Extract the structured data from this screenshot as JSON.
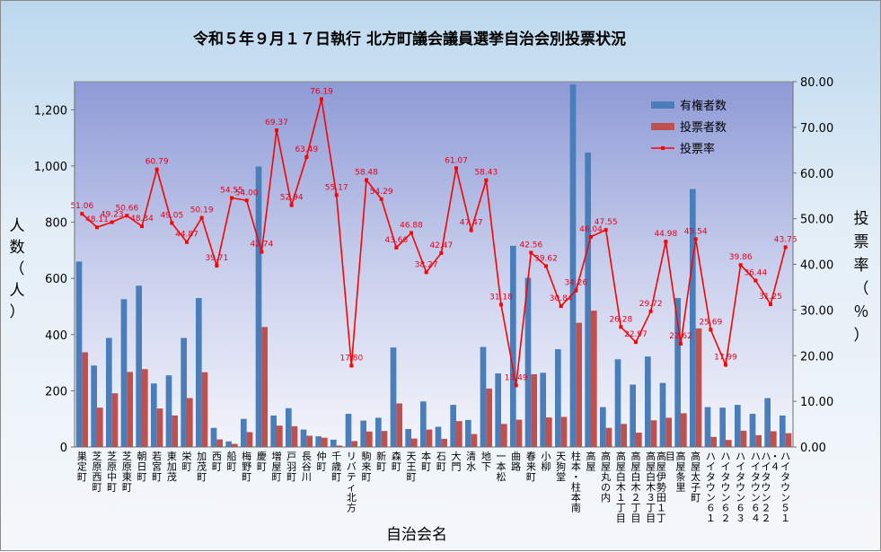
{
  "chart_data": {
    "type": "bar",
    "title": "令和５年９月１７日執行 北方町議会議員選挙自治会別投票状況",
    "xlabel": "自治会名",
    "ylabel_left": "人数（人）",
    "ylabel_right": "投票率（％）",
    "ylim_left": [
      0,
      1300
    ],
    "ylim_right": [
      0,
      80
    ],
    "yticks_left": [
      "0",
      "200",
      "400",
      "600",
      "800",
      "1,000",
      "1,200"
    ],
    "yticks_right": [
      "0.00",
      "10.00",
      "20.00",
      "30.00",
      "40.00",
      "50.00",
      "60.00",
      "70.00",
      "80.00"
    ],
    "legend_position": "top-right",
    "categories": [
      "巣定町",
      "芝原西町",
      "芝原中町",
      "芝原東町",
      "朝日町",
      "若宮町",
      "東加茂",
      "栄町",
      "加茂町",
      "西町",
      "船町",
      "梅野町",
      "慶町",
      "増屋町",
      "戸羽町",
      "長谷川",
      "仲町",
      "千歳町",
      "リバティ北方",
      "駒来町",
      "新町",
      "森町",
      "天王町",
      "本町",
      "石町",
      "大門",
      "清水",
      "地下",
      "一本松",
      "曲路",
      "春来町",
      "小柳",
      "天狗堂",
      "柱本・柱本南",
      "高屋",
      "高屋丸の内",
      "高屋白木１丁目",
      "高屋白木２丁目",
      "高屋白木３丁目",
      "高屋伊勢田１丁目",
      "高屋条里",
      "高屋太子町",
      "ハイタウン６１",
      "ハイタウン６２",
      "ハイタウン６３",
      "ハイタウン６４",
      "ハイタウン２２・４",
      "ハイタウン５１"
    ],
    "cat_labels": [
      "巣定町",
      "芝原西町",
      "芝原中町",
      "芝原東町",
      "朝日町",
      "若宮町",
      "東加茂",
      "栄町",
      "加茂町",
      "西町",
      "船町",
      "梅野町",
      "慶町",
      "増屋町",
      "戸羽町",
      "長谷川",
      "仲町",
      "千歳町",
      "リバティ北方",
      "駒来町",
      "新町",
      "森町",
      "天王町",
      "本町",
      "石町",
      "大門",
      "清水",
      "地下",
      "一本松",
      "曲路",
      "春来町",
      "小柳",
      "天狗堂",
      "柱本・柱本南",
      "高屋",
      "高屋丸の内",
      "高屋白木１丁目",
      "高屋白木２丁目",
      "高屋白木３丁目",
      "高屋伊勢田１丁目",
      "高屋条里",
      "高屋太子町",
      "ハイタウン６１",
      "ハイタウン６２",
      "ハイタウン６３",
      "ハイタウン６４",
      "ハイタウン２２・４",
      "ハイタウン５１"
    ],
    "series": [
      {
        "name": "有権者数",
        "type": "bar",
        "axis": "left",
        "color": "#4a7ebb",
        "values": [
          660,
          290,
          388,
          526,
          574,
          226,
          255,
          388,
          530,
          68,
          20,
          100,
          998,
          112,
          138,
          62,
          38,
          26,
          118,
          94,
          104,
          354,
          64,
          162,
          72,
          150,
          96,
          356,
          262,
          716,
          602,
          264,
          348,
          1290,
          1048,
          142,
          312,
          222,
          322,
          228,
          530,
          918,
          142,
          140,
          150,
          118,
          174,
          112
        ]
      },
      {
        "name": "投票者数",
        "type": "bar",
        "axis": "left",
        "color": "#c0504d",
        "values": [
          337,
          140,
          191,
          267,
          277,
          137,
          112,
          174,
          266,
          27,
          11,
          53,
          427,
          76,
          74,
          40,
          33,
          5,
          21,
          55,
          57,
          155,
          30,
          62,
          29,
          92,
          46,
          208,
          82,
          97,
          259,
          105,
          107,
          442,
          485,
          68,
          82,
          51,
          95,
          104,
          120,
          422,
          36,
          25,
          58,
          42,
          56,
          49
        ]
      },
      {
        "name": "投票率",
        "type": "line",
        "axis": "right",
        "color": "#ff0000",
        "values": [
          51.06,
          48.11,
          49.23,
          50.66,
          48.34,
          60.79,
          49.05,
          44.87,
          50.19,
          39.71,
          54.55,
          54.0,
          42.74,
          69.37,
          52.94,
          63.49,
          76.19,
          55.17,
          17.8,
          58.48,
          54.29,
          43.66,
          46.88,
          38.27,
          42.47,
          61.07,
          47.47,
          58.43,
          31.18,
          13.49,
          42.56,
          39.62,
          30.84,
          34.26,
          46.04,
          47.55,
          26.28,
          22.97,
          29.72,
          44.98,
          22.62,
          45.54,
          25.69,
          17.99,
          39.86,
          36.44,
          31.25,
          43.75
        ],
        "labels": [
          "51.06",
          "48.11",
          "49.23",
          "50.66",
          "48.34",
          "60.79",
          "49.05",
          "44.87",
          "50.19",
          "39.71",
          "54.55",
          "54.00",
          "42.74",
          "69.37",
          "52.94",
          "63.49",
          "76.19",
          "55.17",
          "17.80",
          "58.48",
          "54.29",
          "43.66",
          "46.88",
          "38.27",
          "42.47",
          "61.07",
          "47.47",
          "58.43",
          "31.18",
          "13.49",
          "42.56",
          "39.62",
          "30.84",
          "34.26",
          "46.04",
          "47.55",
          "26.28",
          "22.97",
          "29.72",
          "44.98",
          "22.62",
          "45.54",
          "25.69",
          "17.99",
          "39.86",
          "36.44",
          "31.25",
          "43.75"
        ]
      }
    ]
  }
}
